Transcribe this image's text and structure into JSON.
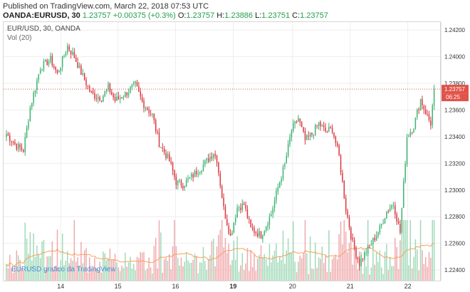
{
  "header": {
    "published": "Published on TradingView.com, March 22, 2018 07:53 UTC",
    "symbol": "OANDA:EURUSD, 30",
    "last": "1.23757",
    "change": "+0.00375 (+0.3%)",
    "o_label": "O:",
    "o_value": "1.23757",
    "h_label": "H:",
    "h_value": "1.23886",
    "l_label": "L:",
    "l_value": "1.23751",
    "c_label": "C:",
    "c_value": "1.23757"
  },
  "legend": {
    "pair": "EUR/USD, 30, OANDA",
    "volume": "Vol (20)"
  },
  "watermark": "EURUSD grafico da TradingView",
  "colors": {
    "up": "#3cb371",
    "down": "#d9363e",
    "vol_up": "#9fd9b7",
    "vol_down": "#f0a8ab",
    "vol_ma": "#f5a25b",
    "price_line": "#e0534a",
    "tag_bg": "#e0534a"
  },
  "chart_data": {
    "type": "candlestick",
    "ylim": [
      1.2232,
      1.2426
    ],
    "y_ticks": [
      "1.24200",
      "1.24000",
      "1.23800",
      "1.23600",
      "1.23400",
      "1.23200",
      "1.23000",
      "1.22800",
      "1.22600",
      "1.22400"
    ],
    "y_tick_values": [
      1.242,
      1.24,
      1.238,
      1.236,
      1.234,
      1.232,
      1.23,
      1.228,
      1.226,
      1.224
    ],
    "x_ticks": [
      {
        "label": "14",
        "pos": 0.131,
        "bold": false
      },
      {
        "label": "15",
        "pos": 0.262,
        "bold": false
      },
      {
        "label": "16",
        "pos": 0.394,
        "bold": false
      },
      {
        "label": "19",
        "pos": 0.526,
        "bold": true
      },
      {
        "label": "20",
        "pos": 0.662,
        "bold": false
      },
      {
        "label": "21",
        "pos": 0.794,
        "bold": false
      },
      {
        "label": "22",
        "pos": 0.926,
        "bold": false
      }
    ],
    "price_line_value": 1.23757,
    "price_tag": "1.23757",
    "countdown_tag": "06:25",
    "keypoints": [
      [
        0,
        1.2342
      ],
      [
        6,
        1.2333
      ],
      [
        10,
        1.233
      ],
      [
        14,
        1.2362
      ],
      [
        20,
        1.2392
      ],
      [
        26,
        1.2398
      ],
      [
        30,
        1.2387
      ],
      [
        36,
        1.2408
      ],
      [
        40,
        1.24
      ],
      [
        44,
        1.2388
      ],
      [
        50,
        1.2372
      ],
      [
        56,
        1.2369
      ],
      [
        60,
        1.2377
      ],
      [
        64,
        1.2367
      ],
      [
        70,
        1.2372
      ],
      [
        76,
        1.2379
      ],
      [
        80,
        1.2366
      ],
      [
        86,
        1.2356
      ],
      [
        90,
        1.2335
      ],
      [
        96,
        1.2322
      ],
      [
        100,
        1.2306
      ],
      [
        104,
        1.2304
      ],
      [
        110,
        1.2311
      ],
      [
        116,
        1.2319
      ],
      [
        122,
        1.2328
      ],
      [
        124,
        1.2323
      ],
      [
        128,
        1.2286
      ],
      [
        132,
        1.2265
      ],
      [
        136,
        1.2287
      ],
      [
        140,
        1.2289
      ],
      [
        144,
        1.2271
      ],
      [
        150,
        1.2266
      ],
      [
        156,
        1.2282
      ],
      [
        160,
        1.2302
      ],
      [
        164,
        1.2319
      ],
      [
        168,
        1.2345
      ],
      [
        172,
        1.2354
      ],
      [
        176,
        1.2337
      ],
      [
        180,
        1.2342
      ],
      [
        184,
        1.235
      ],
      [
        188,
        1.2344
      ],
      [
        192,
        1.2346
      ],
      [
        196,
        1.2325
      ],
      [
        200,
        1.2286
      ],
      [
        204,
        1.226
      ],
      [
        208,
        1.2245
      ],
      [
        212,
        1.2254
      ],
      [
        216,
        1.2262
      ],
      [
        220,
        1.2271
      ],
      [
        224,
        1.2284
      ],
      [
        228,
        1.229
      ],
      [
        232,
        1.2268
      ],
      [
        236,
        1.234
      ],
      [
        240,
        1.2348
      ],
      [
        244,
        1.2368
      ],
      [
        248,
        1.2355
      ],
      [
        250,
        1.235
      ],
      [
        252,
        1.23757
      ]
    ]
  }
}
